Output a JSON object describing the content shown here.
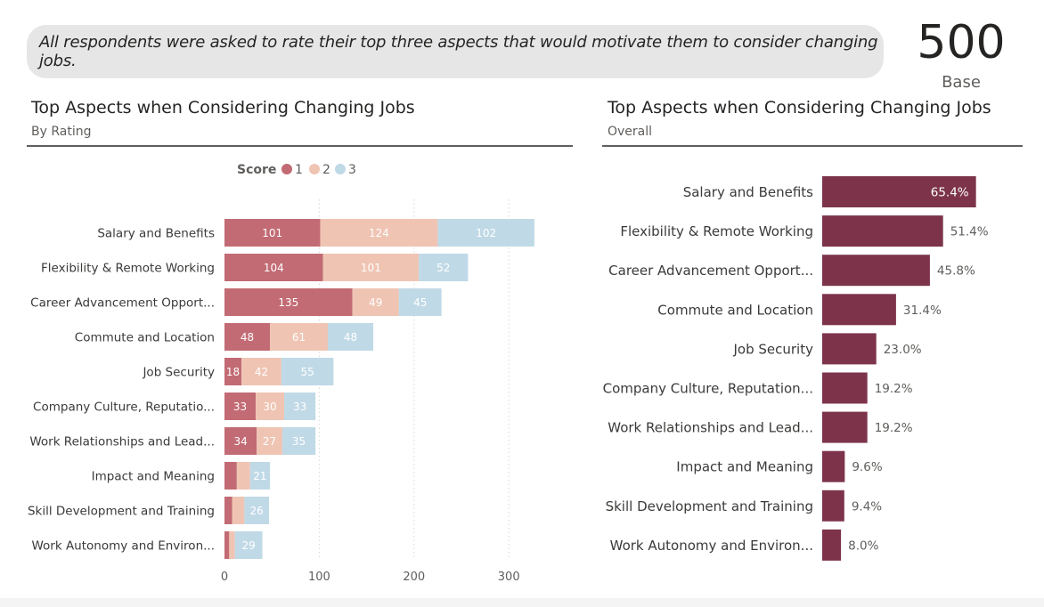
{
  "banner": {
    "text": "All respondents were asked to rate their top three aspects that would motivate them to consider changing jobs."
  },
  "kpi": {
    "value": "500",
    "label": "Base"
  },
  "left_panel": {
    "title": "Top Aspects when Considering Changing Jobs",
    "subtitle": "By Rating"
  },
  "right_panel": {
    "title": "Top Aspects when Considering Changing Jobs",
    "subtitle": "Overall"
  },
  "colors": {
    "score1": "#c26b74",
    "score2": "#efc4b3",
    "score3": "#c0d9e6",
    "overall": "#7d344b",
    "grid": "#d8d8d8",
    "label": "#3b3a39"
  },
  "chart_data": [
    {
      "type": "bar",
      "orientation": "horizontal",
      "stacked": true,
      "title": "Top Aspects when Considering Changing Jobs",
      "subtitle": "By Rating",
      "legend_title": "Score",
      "legend_position": "top",
      "categories": [
        "Salary and Benefits",
        "Flexibility & Remote Working",
        "Career Advancement Opport...",
        "Commute and Location",
        "Job Security",
        "Company Culture, Reputatio...",
        "Work Relationships and Lead...",
        "Impact and Meaning",
        "Skill Development and Training",
        "Work Autonomy and Environ..."
      ],
      "series": [
        {
          "name": "1",
          "values": [
            101,
            104,
            135,
            48,
            18,
            33,
            34,
            13,
            8,
            5
          ],
          "labels": [
            "101",
            "104",
            "135",
            "48",
            "18",
            "33",
            "34",
            "",
            "",
            ""
          ]
        },
        {
          "name": "2",
          "values": [
            124,
            101,
            49,
            61,
            42,
            30,
            27,
            14,
            13,
            6
          ],
          "labels": [
            "124",
            "101",
            "49",
            "61",
            "42",
            "30",
            "27",
            "",
            "",
            ""
          ]
        },
        {
          "name": "3",
          "values": [
            102,
            52,
            45,
            48,
            55,
            33,
            35,
            21,
            26,
            29
          ],
          "labels": [
            "102",
            "52",
            "45",
            "48",
            "55",
            "33",
            "35",
            "21",
            "26",
            "29"
          ]
        }
      ],
      "xlim": [
        0,
        330
      ],
      "xticks": [
        0,
        100,
        200,
        300
      ],
      "xtick_labels": [
        "0",
        "100",
        "200",
        "300"
      ],
      "grid": true
    },
    {
      "type": "bar",
      "orientation": "horizontal",
      "stacked": false,
      "title": "Top Aspects when Considering Changing Jobs",
      "subtitle": "Overall",
      "categories": [
        "Salary and Benefits",
        "Flexibility & Remote Working",
        "Career Advancement Opport...",
        "Commute and Location",
        "Job Security",
        "Company Culture, Reputation...",
        "Work Relationships and Lead...",
        "Impact and Meaning",
        "Skill Development and Training",
        "Work Autonomy and Environ..."
      ],
      "values": [
        65.4,
        51.4,
        45.8,
        31.4,
        23.0,
        19.2,
        19.2,
        9.6,
        9.4,
        8.0
      ],
      "labels": [
        "65.4%",
        "51.4%",
        "45.8%",
        "31.4%",
        "23.0%",
        "19.2%",
        "19.2%",
        "9.6%",
        "9.4%",
        "8.0%"
      ],
      "xlim": [
        0,
        68
      ],
      "grid": false
    }
  ]
}
